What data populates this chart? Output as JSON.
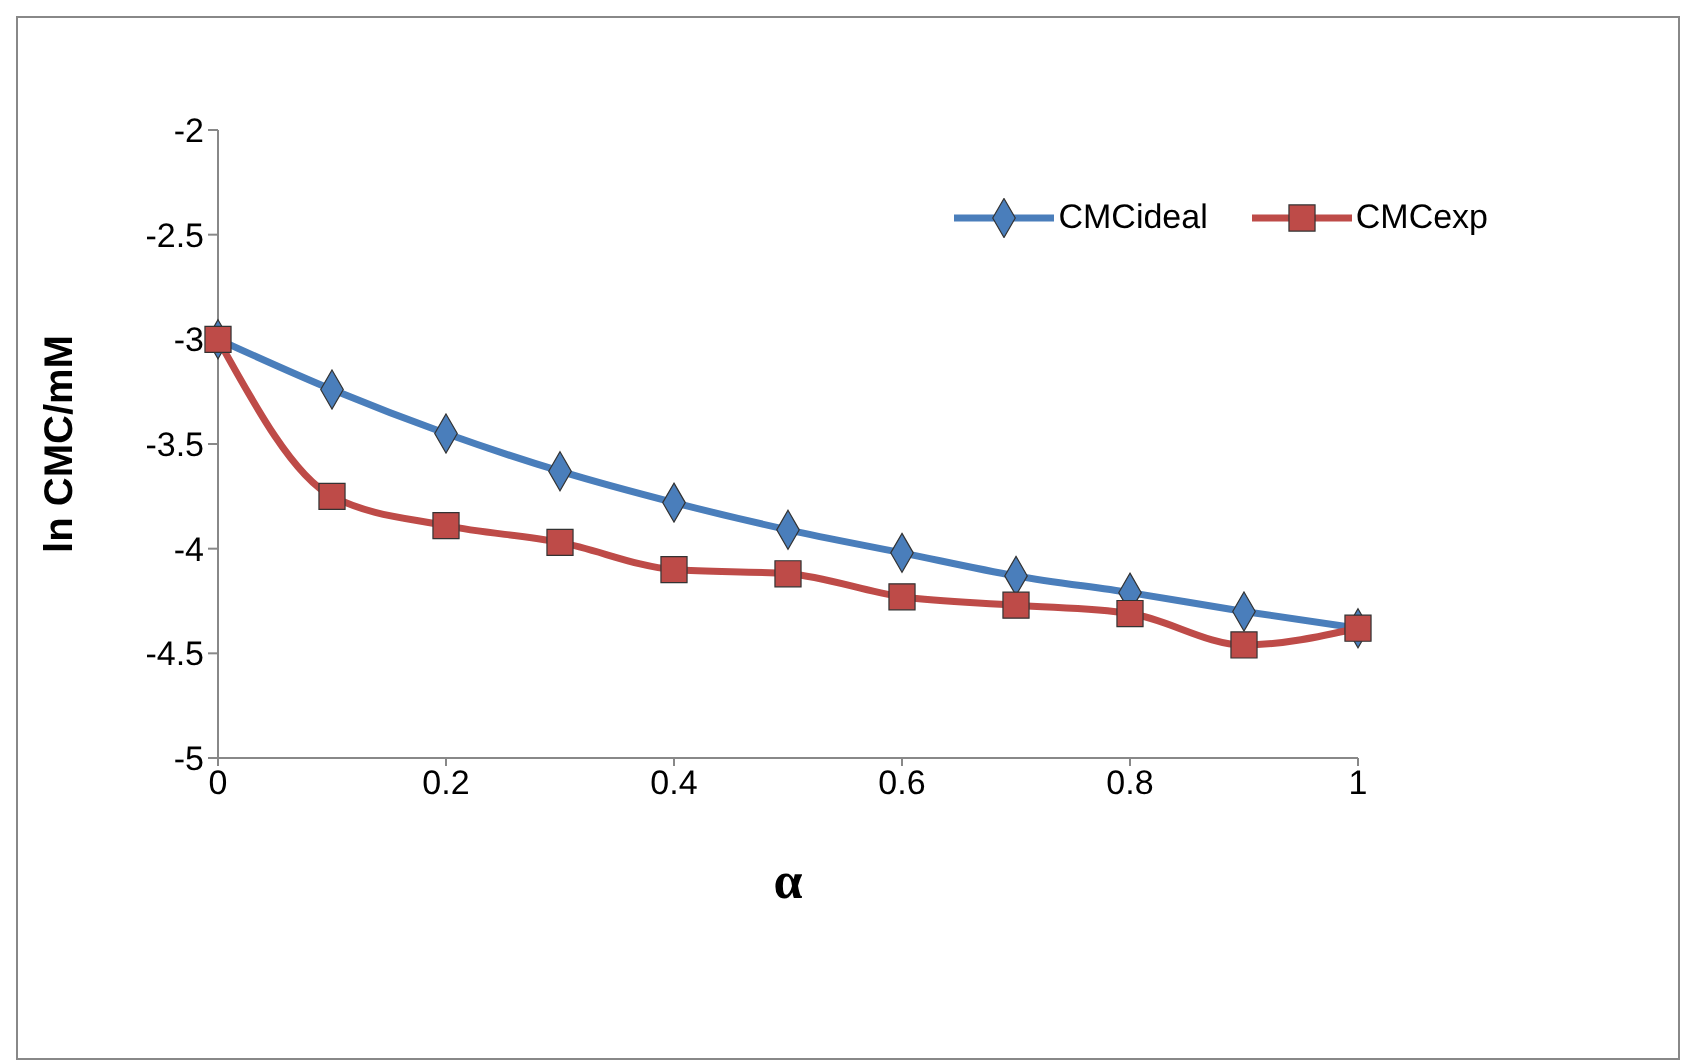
{
  "chart_data": {
    "type": "line",
    "xlabel": "α",
    "ylabel": "ln CMC/mM",
    "x": [
      0,
      0.1,
      0.2,
      0.3,
      0.4,
      0.5,
      0.6,
      0.7,
      0.8,
      0.9,
      1
    ],
    "series": [
      {
        "name": "CMCideal",
        "color": "#4a7ebb",
        "marker": "diamond",
        "values": [
          -3.0,
          -3.24,
          -3.45,
          -3.63,
          -3.78,
          -3.91,
          -4.02,
          -4.13,
          -4.21,
          -4.3,
          -4.38
        ]
      },
      {
        "name": "CMCexp",
        "color": "#be4b48",
        "marker": "square",
        "values": [
          -3.0,
          -3.75,
          -3.89,
          -3.97,
          -4.1,
          -4.12,
          -4.23,
          -4.27,
          -4.31,
          -4.46,
          -4.38
        ]
      }
    ],
    "xlim": [
      0,
      1
    ],
    "xticks": [
      0,
      0.2,
      0.4,
      0.6,
      0.8,
      1
    ],
    "ylim": [
      -5,
      -2
    ],
    "yticks": [
      -5,
      -4.5,
      -4,
      -3.5,
      -3,
      -2.5,
      -2
    ],
    "grid": false,
    "legend": "top right"
  }
}
